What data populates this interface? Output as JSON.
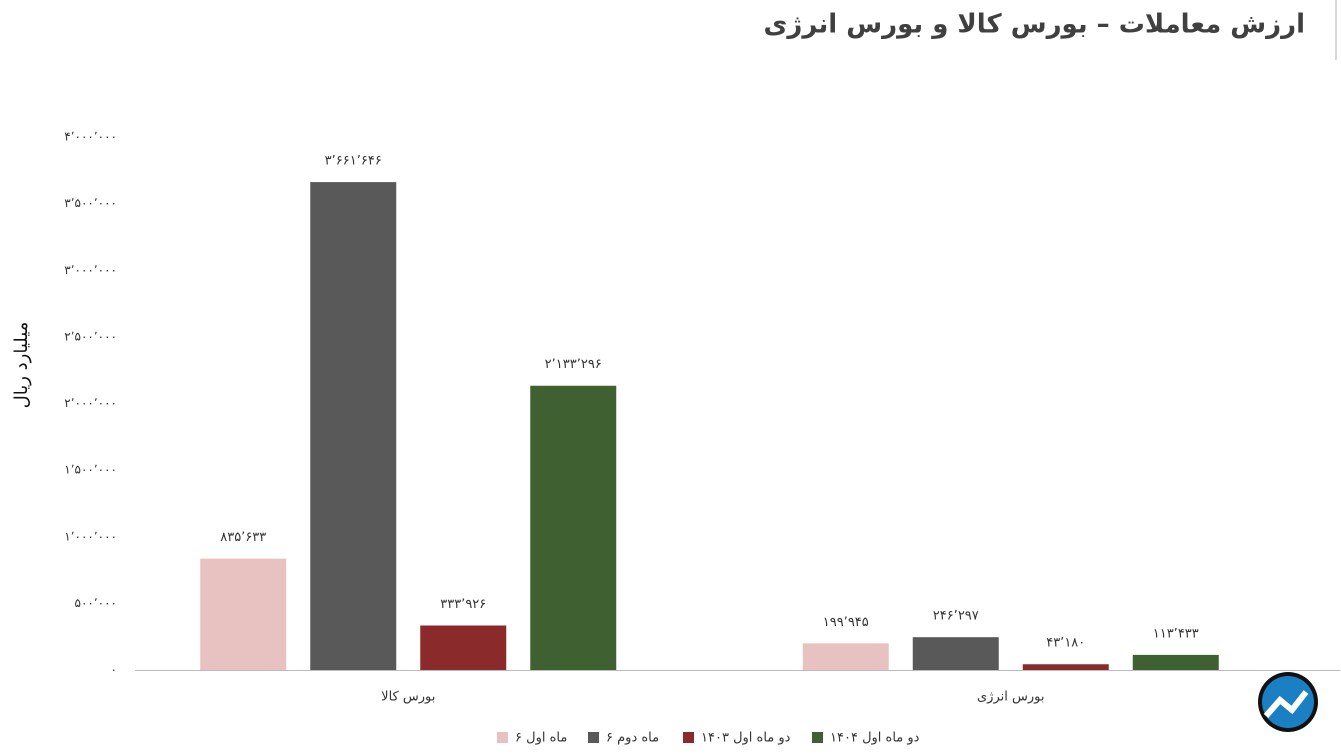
{
  "chart_data": {
    "type": "bar",
    "title": "ارزش معاملات – بورس کالا و بورس انرژی",
    "y_label": "میلیارد ریال",
    "categories": [
      "بورس کالا",
      "بورس انرژی"
    ],
    "series": [
      {
        "name": "۶ ماه اول",
        "color": "#e8c1c1",
        "values": [
          835633,
          199945
        ],
        "value_labels": [
          "۸۳۵٬۶۳۳",
          "۱۹۹٬۹۴۵"
        ]
      },
      {
        "name": "۶ ماه دوم",
        "color": "#595959",
        "values": [
          3661646,
          246297
        ],
        "value_labels": [
          "۳٬۶۶۱٬۶۴۶",
          "۲۴۶٬۲۹۷"
        ]
      },
      {
        "name": "دو ماه اول ۱۴۰۳",
        "color": "#8b2a2a",
        "values": [
          333926,
          43180
        ],
        "value_labels": [
          "۳۳۳٬۹۲۶",
          "۴۳٬۱۸۰"
        ]
      },
      {
        "name": "دو ماه اول ۱۴۰۴",
        "color": "#3f6132",
        "values": [
          2133296,
          113433
        ],
        "value_labels": [
          "۲٬۱۳۳٬۲۹۶",
          "۱۱۳٬۴۳۳"
        ]
      }
    ],
    "ylim": [
      0,
      4000000
    ],
    "yticks": [
      {
        "value": 0,
        "label": "۰"
      },
      {
        "value": 500000,
        "label": "۵۰۰٬۰۰۰"
      },
      {
        "value": 1000000,
        "label": "۱٬۰۰۰٬۰۰۰"
      },
      {
        "value": 1500000,
        "label": "۱٬۵۰۰٬۰۰۰"
      },
      {
        "value": 2000000,
        "label": "۲٬۰۰۰٬۰۰۰"
      },
      {
        "value": 2500000,
        "label": "۲٬۵۰۰٬۰۰۰"
      },
      {
        "value": 3000000,
        "label": "۳٬۰۰۰٬۰۰۰"
      },
      {
        "value": 3500000,
        "label": "۳٬۵۰۰٬۰۰۰"
      },
      {
        "value": 4000000,
        "label": "۴٬۰۰۰٬۰۰۰"
      }
    ],
    "grid": false
  }
}
